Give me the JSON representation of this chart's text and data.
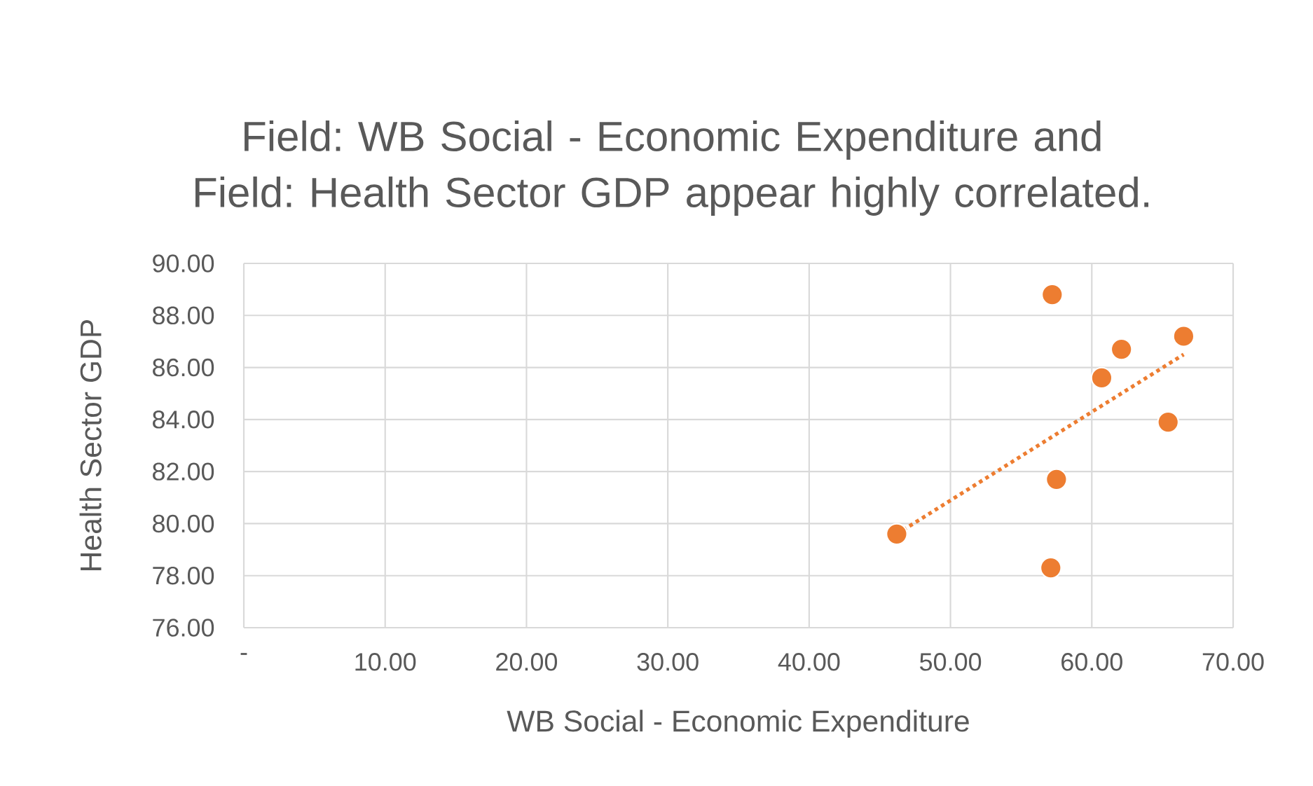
{
  "chart_data": {
    "type": "scatter",
    "title": "Field: WB Social - Economic Expenditure and Field: Health Sector GDP appear highly correlated.",
    "xlabel": "WB Social - Economic Expenditure",
    "ylabel": "Health Sector GDP",
    "xlim": [
      0,
      70
    ],
    "xticks": [
      {
        "value": 0,
        "label": "-"
      },
      {
        "value": 10,
        "label": "10.00"
      },
      {
        "value": 20,
        "label": "20.00"
      },
      {
        "value": 30,
        "label": "30.00"
      },
      {
        "value": 40,
        "label": "40.00"
      },
      {
        "value": 50,
        "label": "50.00"
      },
      {
        "value": 60,
        "label": "60.00"
      },
      {
        "value": 70,
        "label": "70.00"
      }
    ],
    "ylim": [
      76,
      90
    ],
    "yticks": [
      {
        "value": 76,
        "label": "76.00"
      },
      {
        "value": 78,
        "label": "78.00"
      },
      {
        "value": 80,
        "label": "80.00"
      },
      {
        "value": 82,
        "label": "82.00"
      },
      {
        "value": 84,
        "label": "84.00"
      },
      {
        "value": 86,
        "label": "86.00"
      },
      {
        "value": 88,
        "label": "88.00"
      },
      {
        "value": 90,
        "label": "90.00"
      }
    ],
    "grid": true,
    "series": [
      {
        "color": "#ed7d31",
        "marker": "circle",
        "x": [
          46.2,
          57.2,
          62.1,
          60.7,
          66.5,
          65.4,
          57.5,
          57.1
        ],
        "values": [
          79.6,
          88.8,
          86.7,
          85.6,
          87.2,
          83.9,
          81.7,
          78.3
        ]
      },
      {
        "type": "line",
        "color": "#ed7d31",
        "marker": "none",
        "line_style": "dotted",
        "x": [
          46.2,
          66.5
        ],
        "values": [
          79.6,
          86.5
        ]
      }
    ]
  }
}
